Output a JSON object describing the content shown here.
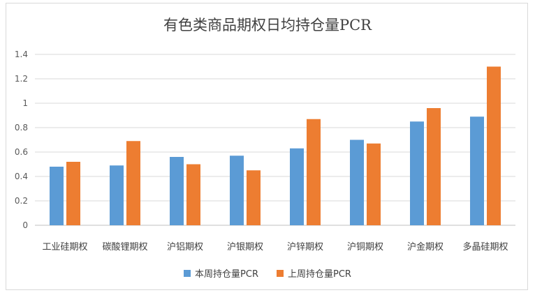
{
  "chart_data": {
    "type": "bar",
    "title": "有色类商品期权日均持仓量PCR",
    "categories": [
      "工业硅期权",
      "碳酸锂期权",
      "沪铝期权",
      "沪银期权",
      "沪锌期权",
      "沪铜期权",
      "沪金期权",
      "多晶硅期权"
    ],
    "series": [
      {
        "name": "本周持仓量PCR",
        "color": "#5b9bd5",
        "values": [
          0.48,
          0.49,
          0.56,
          0.57,
          0.63,
          0.7,
          0.85,
          0.89
        ]
      },
      {
        "name": "上周持仓量PCR",
        "color": "#ed7d31",
        "values": [
          0.52,
          0.69,
          0.5,
          0.45,
          0.87,
          0.67,
          0.96,
          1.3
        ]
      }
    ],
    "ylim": [
      0,
      1.4
    ],
    "yticks": [
      "0",
      "0.2",
      "0.4",
      "0.6",
      "0.8",
      "1",
      "1.2",
      "1.4"
    ],
    "grid": true,
    "legend_position": "bottom"
  }
}
